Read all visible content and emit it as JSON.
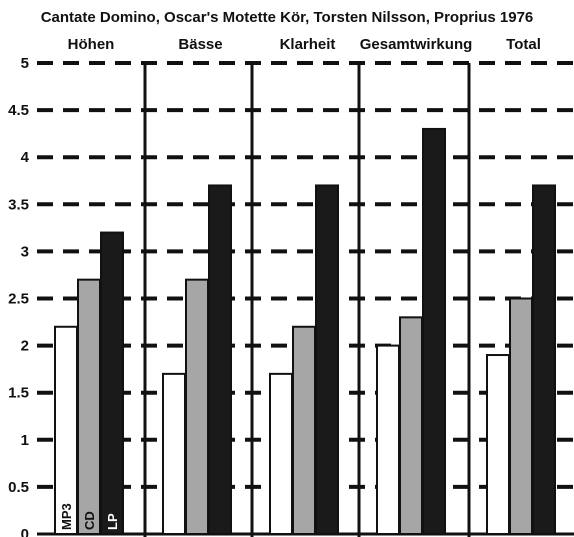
{
  "chart_data": {
    "type": "bar",
    "title": "Cantate Domino, Oscar's Motette Kör, Torsten Nilsson, Proprius 1976",
    "categories": [
      "Höhen",
      "Bässe",
      "Klarheit",
      "Gesamtwirkung",
      "Total"
    ],
    "series": [
      {
        "name": "MP3",
        "values": [
          2.2,
          1.7,
          1.7,
          2.0,
          1.9
        ],
        "color": "#ffffff"
      },
      {
        "name": "CD",
        "values": [
          2.7,
          2.7,
          2.2,
          2.3,
          2.5
        ],
        "color": "#a6a6a6"
      },
      {
        "name": "LP",
        "values": [
          3.2,
          3.7,
          3.7,
          4.3,
          3.7
        ],
        "color": "#1a1a1a"
      }
    ],
    "ylim": [
      0,
      5
    ],
    "yticks": [
      "0",
      "0.5",
      "1",
      "1.5",
      "2",
      "2.5",
      "3",
      "3.5",
      "4",
      "4.5",
      "5"
    ],
    "ytick_values": [
      0,
      0.5,
      1,
      1.5,
      2,
      2.5,
      3,
      3.5,
      4,
      4.5,
      5
    ],
    "grid": true,
    "legend_placement": "inside-bottom-left"
  },
  "colors": {
    "axis": "#111111",
    "bar_outline": "#111111",
    "grid": "#111111"
  }
}
